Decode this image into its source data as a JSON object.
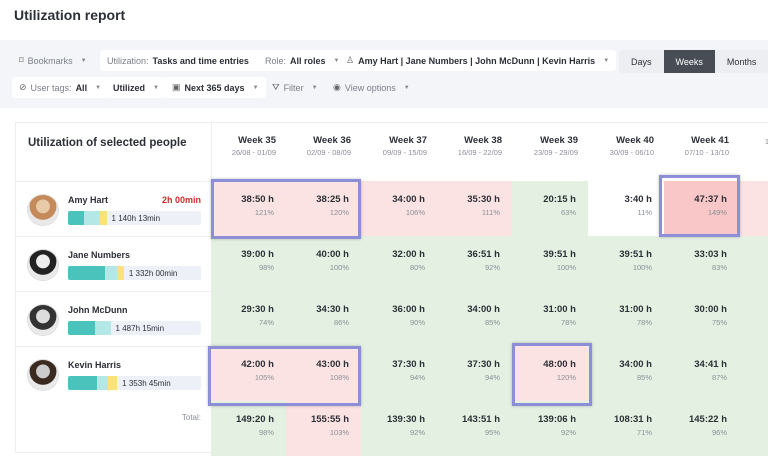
{
  "title": "Utilization report",
  "toolbar": {
    "bookmarks": "Bookmarks",
    "utilization_label": "Utilization:",
    "utilization_value": "Tasks and time entries",
    "role_label": "Role:",
    "role_value": "All roles",
    "people": "Amy Hart | Jane Numbers | John McDunn | Kevin Harris",
    "user_tags_label": "User tags:",
    "user_tags_value": "All",
    "utilized": "Utilized",
    "range": "Next 365 days",
    "filter": "Filter",
    "view_options": "View options",
    "view_modes": [
      "Days",
      "Weeks",
      "Months"
    ],
    "active_view": "Weeks"
  },
  "table": {
    "heading": "Utilization of selected people",
    "total_label": "Total:",
    "weeks": [
      {
        "label": "Week 35",
        "dates": "26/08 - 01/09"
      },
      {
        "label": "Week 36",
        "dates": "02/09 - 08/09"
      },
      {
        "label": "Week 37",
        "dates": "09/09 - 15/09"
      },
      {
        "label": "Week 38",
        "dates": "16/09 - 22/09"
      },
      {
        "label": "Week 39",
        "dates": "23/09 - 29/09"
      },
      {
        "label": "Week 40",
        "dates": "30/09 - 06/10"
      },
      {
        "label": "Week 41",
        "dates": "07/10 - 13/10"
      },
      {
        "label": "",
        "dates": "1"
      }
    ],
    "people": [
      {
        "name": "Amy Hart",
        "overtime": "2h 00min",
        "total": "1 140h 13min",
        "bar": [
          12,
          12,
          5
        ],
        "cells": [
          [
            "38:50 h",
            "121%",
            "red"
          ],
          [
            "38:25 h",
            "120%",
            "red"
          ],
          [
            "34:00 h",
            "106%",
            "red"
          ],
          [
            "35:30 h",
            "111%",
            "red"
          ],
          [
            "20:15 h",
            "63%",
            "green"
          ],
          [
            "3:40 h",
            "11%",
            "none"
          ],
          [
            "47:37 h",
            "149%",
            "dred"
          ],
          [
            "",
            "",
            "red"
          ]
        ]
      },
      {
        "name": "Jane Numbers",
        "overtime": "",
        "total": "1 332h 00min",
        "bar": [
          28,
          9,
          5
        ],
        "cells": [
          [
            "39:00 h",
            "98%",
            "green"
          ],
          [
            "40:00 h",
            "100%",
            "green"
          ],
          [
            "32:00 h",
            "80%",
            "green"
          ],
          [
            "36:51 h",
            "92%",
            "green"
          ],
          [
            "39:51 h",
            "100%",
            "green"
          ],
          [
            "39:51 h",
            "100%",
            "green"
          ],
          [
            "33:03 h",
            "83%",
            "green"
          ],
          [
            "",
            "",
            "green"
          ]
        ]
      },
      {
        "name": "John McDunn",
        "overtime": "",
        "total": "1 487h 15min",
        "bar": [
          20,
          12,
          0
        ],
        "cells": [
          [
            "29:30 h",
            "74%",
            "green"
          ],
          [
            "34:30 h",
            "86%",
            "green"
          ],
          [
            "36:00 h",
            "90%",
            "green"
          ],
          [
            "34:00 h",
            "85%",
            "green"
          ],
          [
            "31:00 h",
            "78%",
            "green"
          ],
          [
            "31:00 h",
            "78%",
            "green"
          ],
          [
            "30:00 h",
            "75%",
            "green"
          ],
          [
            "",
            "",
            "green"
          ]
        ]
      },
      {
        "name": "Kevin Harris",
        "overtime": "",
        "total": "1 353h 45min",
        "bar": [
          22,
          8,
          7
        ],
        "cells": [
          [
            "42:00 h",
            "105%",
            "red"
          ],
          [
            "43:00 h",
            "108%",
            "red"
          ],
          [
            "37:30 h",
            "94%",
            "green"
          ],
          [
            "37:30 h",
            "94%",
            "green"
          ],
          [
            "48:00 h",
            "120%",
            "red"
          ],
          [
            "34:00 h",
            "85%",
            "green"
          ],
          [
            "34:41 h",
            "87%",
            "green"
          ],
          [
            "",
            "",
            "green"
          ]
        ]
      }
    ],
    "totals": [
      [
        "149:20 h",
        "98%",
        "green"
      ],
      [
        "155:55 h",
        "103%",
        "red"
      ],
      [
        "139:30 h",
        "92%",
        "green"
      ],
      [
        "143:51 h",
        "95%",
        "green"
      ],
      [
        "139:06 h",
        "92%",
        "green"
      ],
      [
        "108:31 h",
        "71%",
        "green"
      ],
      [
        "145:22 h",
        "96%",
        "green"
      ],
      [
        "",
        "",
        "green"
      ]
    ]
  },
  "colors": {
    "over": "#fce3e3",
    "over_strong": "#f9c7c7",
    "ok": "#e4f1e2",
    "highlight": "#8c8fd8",
    "bar_billable": "#4ac3bd",
    "bar_nonbillable": "#b3e8e6",
    "bar_timeoff": "#f9e27a"
  }
}
